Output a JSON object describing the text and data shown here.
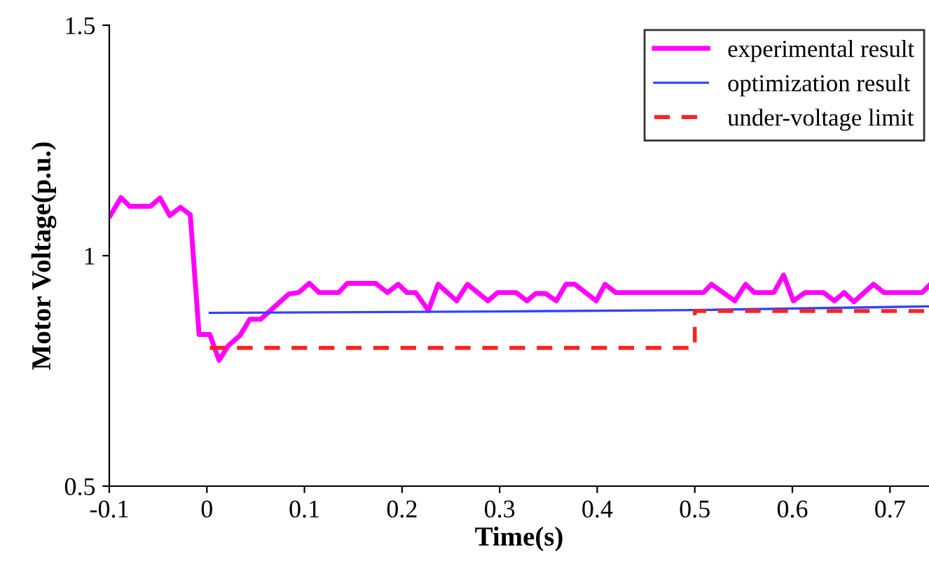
{
  "chart_data": {
    "type": "line",
    "xlabel": "Time(s)",
    "ylabel": "Motor Voltage(p.u.)",
    "xlim": [
      -0.1,
      0.74
    ],
    "ylim": [
      0.5,
      1.5
    ],
    "xticks": [
      -0.1,
      0,
      0.1,
      0.2,
      0.3,
      0.4,
      0.5,
      0.6,
      0.7
    ],
    "yticks": [
      0.5,
      1,
      1.5
    ],
    "grid": false,
    "legend": "top right",
    "series": [
      {
        "name": "experimental result",
        "color": "#ff00ff",
        "line_style": "solid",
        "x": [
          -0.099,
          -0.088,
          -0.079,
          -0.058,
          -0.048,
          -0.038,
          -0.027,
          -0.017,
          -0.008,
          0.003,
          0.0125,
          0.022,
          0.034,
          0.044,
          0.055,
          0.084,
          0.094,
          0.105,
          0.115,
          0.135,
          0.144,
          0.173,
          0.185,
          0.196,
          0.205,
          0.214,
          0.227,
          0.237,
          0.256,
          0.267,
          0.288,
          0.298,
          0.317,
          0.328,
          0.337,
          0.347,
          0.358,
          0.368,
          0.377,
          0.399,
          0.408,
          0.419,
          0.509,
          0.517,
          0.541,
          0.552,
          0.561,
          0.581,
          0.591,
          0.601,
          0.613,
          0.632,
          0.643,
          0.653,
          0.663,
          0.683,
          0.694,
          0.733,
          0.74
        ],
        "values": [
          1.087,
          1.126,
          1.107,
          1.107,
          1.125,
          1.087,
          1.105,
          1.089,
          0.829,
          0.829,
          0.773,
          0.805,
          0.827,
          0.862,
          0.862,
          0.917,
          0.92,
          0.94,
          0.92,
          0.92,
          0.94,
          0.94,
          0.92,
          0.938,
          0.92,
          0.92,
          0.881,
          0.938,
          0.902,
          0.938,
          0.902,
          0.92,
          0.92,
          0.902,
          0.918,
          0.918,
          0.902,
          0.938,
          0.938,
          0.902,
          0.938,
          0.92,
          0.92,
          0.938,
          0.902,
          0.938,
          0.92,
          0.92,
          0.958,
          0.902,
          0.92,
          0.92,
          0.902,
          0.92,
          0.9,
          0.938,
          0.92,
          0.92,
          0.935
        ]
      },
      {
        "name": "optimization result",
        "color": "#3344ff",
        "line_style": "solid",
        "x": [
          0.003,
          0.3,
          0.5,
          0.74
        ],
        "values": [
          0.876,
          0.879,
          0.882,
          0.89
        ]
      },
      {
        "name": "under-voltage limit",
        "color": "#ff2222",
        "line_style": "dashed",
        "x": [
          0.003,
          0.5,
          0.5,
          0.74
        ],
        "values": [
          0.8,
          0.8,
          0.88,
          0.88
        ]
      }
    ]
  }
}
